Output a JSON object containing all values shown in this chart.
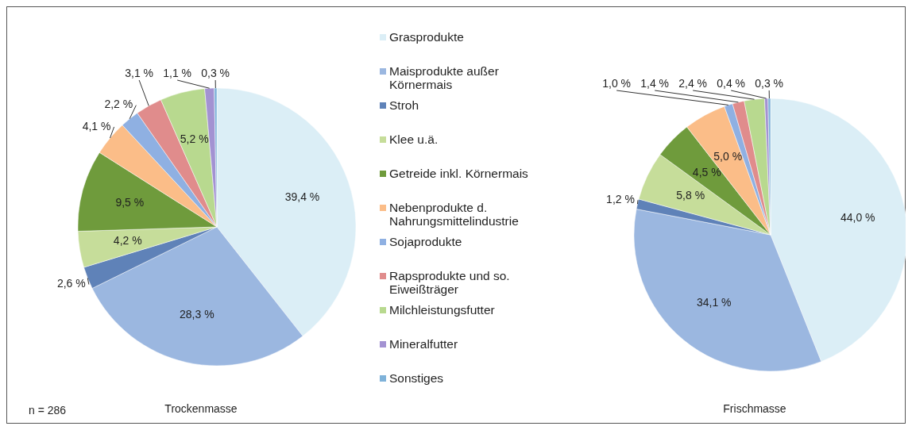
{
  "chart_data": {
    "type": "pie",
    "legend": "right",
    "annotations": [
      "n = 286"
    ],
    "categories": [
      "Grasprodukte",
      "Maisprodukte außer Körnermais",
      "Stroh",
      "Klee u.ä.",
      "Getreide inkl. Körnermais",
      "Nebenprodukte d. Nahrungsmittelindustrie",
      "Sojaprodukte",
      "Rapsprodukte und so. Eiweißträger",
      "Milchleistungsfutter",
      "Mineralfutter",
      "Sonstiges"
    ],
    "colors": [
      "#dbeef6",
      "#9bb7e0",
      "#5f82b8",
      "#c6dd9a",
      "#6f9b3c",
      "#fbbd88",
      "#8fb0e2",
      "#e08c8c",
      "#b8d98f",
      "#a392d2",
      "#7fb2d9"
    ],
    "series": [
      {
        "name": "Trockenmasse",
        "values": [
          39.4,
          28.3,
          2.6,
          4.2,
          9.5,
          4.1,
          2.2,
          3.1,
          5.2,
          1.1,
          0.3
        ],
        "value_labels": [
          "39,4 %",
          "28,3 %",
          "2,6 %",
          "4,2 %",
          "9,5 %",
          "4,1 %",
          "2,2 %",
          "3,1 %",
          "5,2 %",
          "1,1 %",
          "0,3 %"
        ]
      },
      {
        "name": "Frischmasse",
        "values": [
          44.0,
          34.1,
          1.2,
          5.8,
          4.5,
          5.0,
          1.0,
          1.4,
          2.4,
          0.4,
          0.3
        ],
        "value_labels": [
          "44,0 %",
          "34,1 %",
          "1,2 %",
          "5,8 %",
          "4,5 %",
          "5,0 %",
          "1,0 %",
          "1,4 %",
          "2,4 %",
          "0,4 %",
          "0,3 %"
        ]
      }
    ]
  }
}
